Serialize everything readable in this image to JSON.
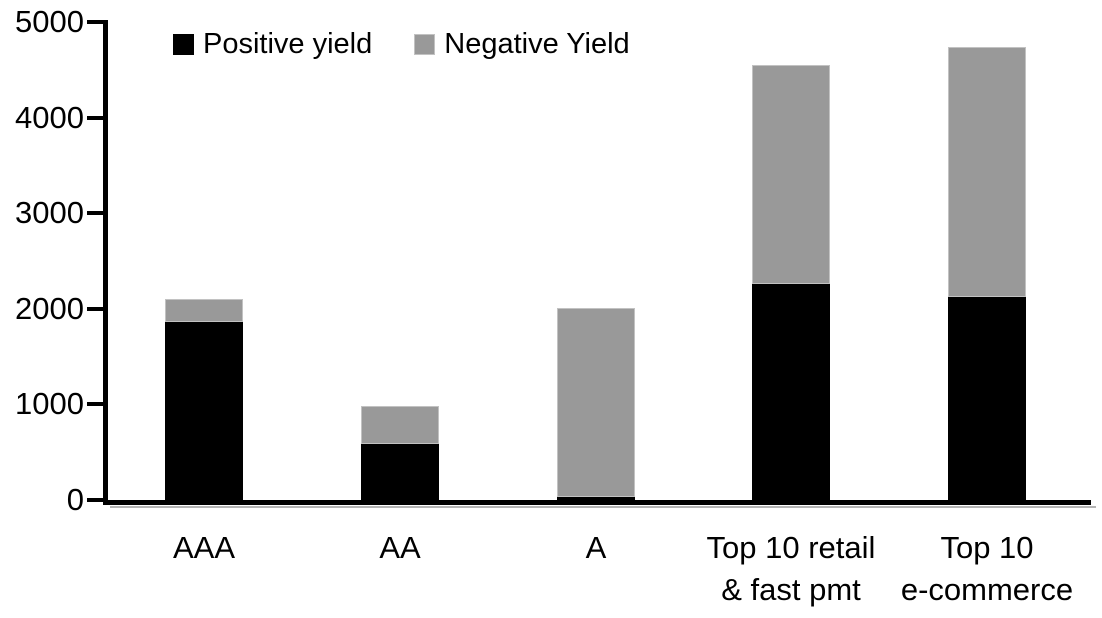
{
  "chart_data": {
    "type": "bar",
    "stacked": true,
    "title": "",
    "xlabel": "",
    "ylabel": "",
    "categories": [
      "AAA",
      "AA",
      "A",
      "Top 10 retail & fast pmt",
      "Top 10 e-commerce"
    ],
    "category_label_lines": [
      [
        "AAA"
      ],
      [
        "AA"
      ],
      [
        "A"
      ],
      [
        "Top 10 retail",
        "& fast pmt"
      ],
      [
        "Top 10",
        "e-commerce"
      ]
    ],
    "series": [
      {
        "name": "Positive yield",
        "color": "#000000",
        "values": [
          1880,
          610,
          50,
          2280,
          2140
        ]
      },
      {
        "name": "Negative Yield",
        "color": "#999999",
        "values": [
          240,
          390,
          1980,
          2290,
          2620
        ]
      }
    ],
    "totals": [
      2120,
      1000,
      2030,
      4570,
      4760
    ],
    "ylim": [
      0,
      5000
    ],
    "yticks": [
      0,
      1000,
      2000,
      3000,
      4000,
      5000
    ],
    "grid": false,
    "legend_position": "top-left"
  }
}
